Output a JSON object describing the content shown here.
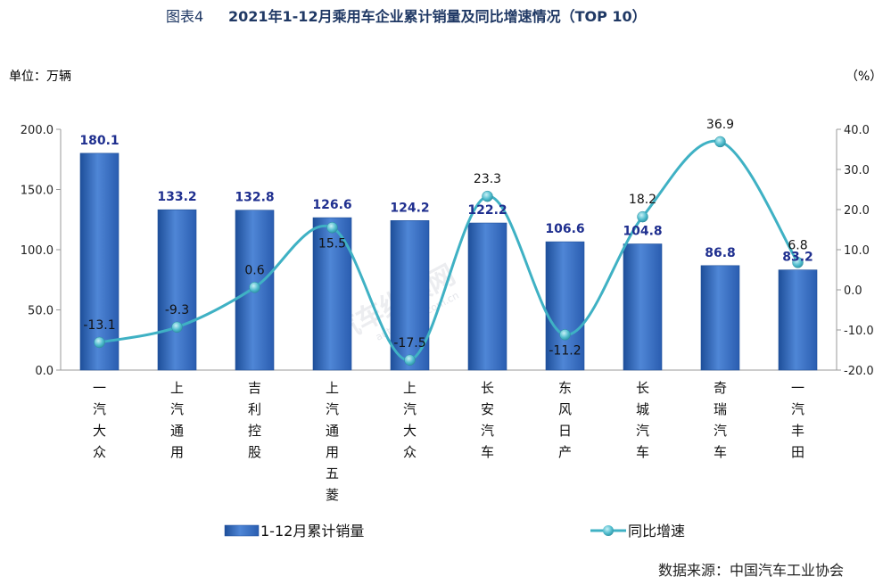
{
  "chart_data": {
    "type": "bar",
    "title_prefix": "图表4",
    "title": "2021年1-12月乘用车企业累计销量及同比增速情况（TOP 10）",
    "left_unit": "单位：万辆",
    "right_unit": "（%）",
    "categories": [
      "一汽大众",
      "上汽通用",
      "吉利控股",
      "上汽通用五菱",
      "上汽大众",
      "长安汽车",
      "东风日产",
      "长城汽车",
      "奇瑞汽车",
      "一汽丰田"
    ],
    "series": [
      {
        "name": "1-12月累计销量",
        "type": "bar",
        "axis": "left",
        "values": [
          180.1,
          133.2,
          132.8,
          126.6,
          124.2,
          122.2,
          106.6,
          104.8,
          86.8,
          83.2
        ]
      },
      {
        "name": "同比增速",
        "type": "line",
        "axis": "right",
        "values": [
          -13.1,
          -9.3,
          0.6,
          15.5,
          -17.5,
          23.3,
          -11.2,
          18.2,
          36.9,
          6.8
        ]
      }
    ],
    "left_ylim": [
      0,
      200
    ],
    "left_ticks": [
      "0.0",
      "50.0",
      "100.0",
      "150.0",
      "200.0"
    ],
    "right_ylim": [
      -20,
      40
    ],
    "right_ticks": [
      "-20.0",
      "-10.0",
      "0.0",
      "10.0",
      "20.0",
      "30.0",
      "40.0"
    ],
    "legend_position": "bottom",
    "grid": false,
    "colors": {
      "bar": "#3a6fc4",
      "bar_dark": "#1e4f9a",
      "line": "#3fb1c4",
      "marker": "#57c2d4"
    },
    "source": "数据来源：中国汽车工业协会",
    "watermark": "汽车纵横网",
    "watermark_sub": "autoreview.com.cn"
  }
}
